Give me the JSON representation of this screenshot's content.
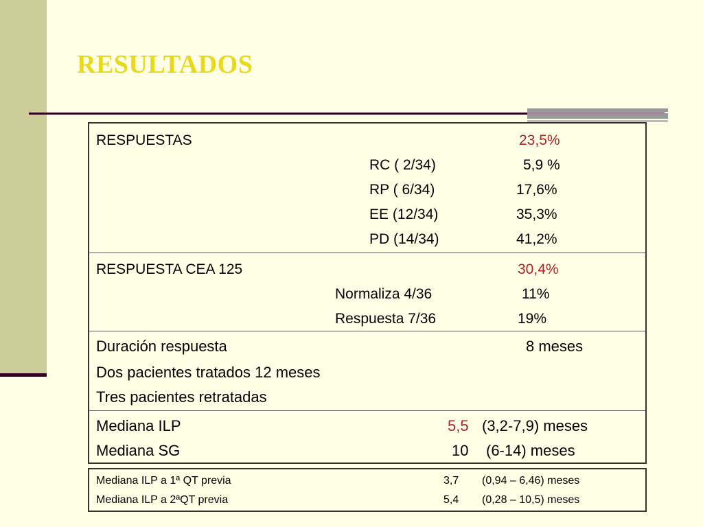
{
  "title": "RESULTADOS",
  "respuestas": {
    "label": "RESPUESTAS",
    "total": "23,5%",
    "rows": [
      {
        "label": "RC  ( 2/34)",
        "value": "5,9 %"
      },
      {
        "label": "RP  ( 6/34)",
        "value": "17,6%"
      },
      {
        "label": "EE  (12/34)",
        "value": "35,3%"
      },
      {
        "label": "PD  (14/34)",
        "value": "41,2%"
      }
    ]
  },
  "cea": {
    "label": "RESPUESTA CEA 125",
    "total": "30,4%",
    "rows": [
      {
        "label": "Normaliza 4/36",
        "value": "11%"
      },
      {
        "label": "Respuesta 7/36",
        "value": "19%"
      }
    ]
  },
  "duracion": {
    "label": "Duración respuesta",
    "value": "8 meses",
    "line2": "Dos pacientes  tratados 12 meses",
    "line3": "Tres pacientes retratadas"
  },
  "medianas": {
    "ilp_label": "Mediana ILP",
    "ilp_value": "5,5",
    "ilp_range": "(3,2-7,9)  meses",
    "sg_label": "Mediana SG",
    "sg_value": "10",
    "sg_range": "(6-14) meses"
  },
  "previa": [
    {
      "label": "Mediana ILP a 1ª QT previa",
      "value": "3,7",
      "range": "(0,94 – 6,46) meses"
    },
    {
      "label": "Mediana ILP a 2ªQT previa",
      "value": "5,4",
      "range": "(0,28 – 10,5) meses"
    }
  ],
  "colors": {
    "title": "#e8d81e",
    "accent_red": "#b21f2d",
    "sidebar": "#cccc99",
    "background": "#ffffe5"
  }
}
